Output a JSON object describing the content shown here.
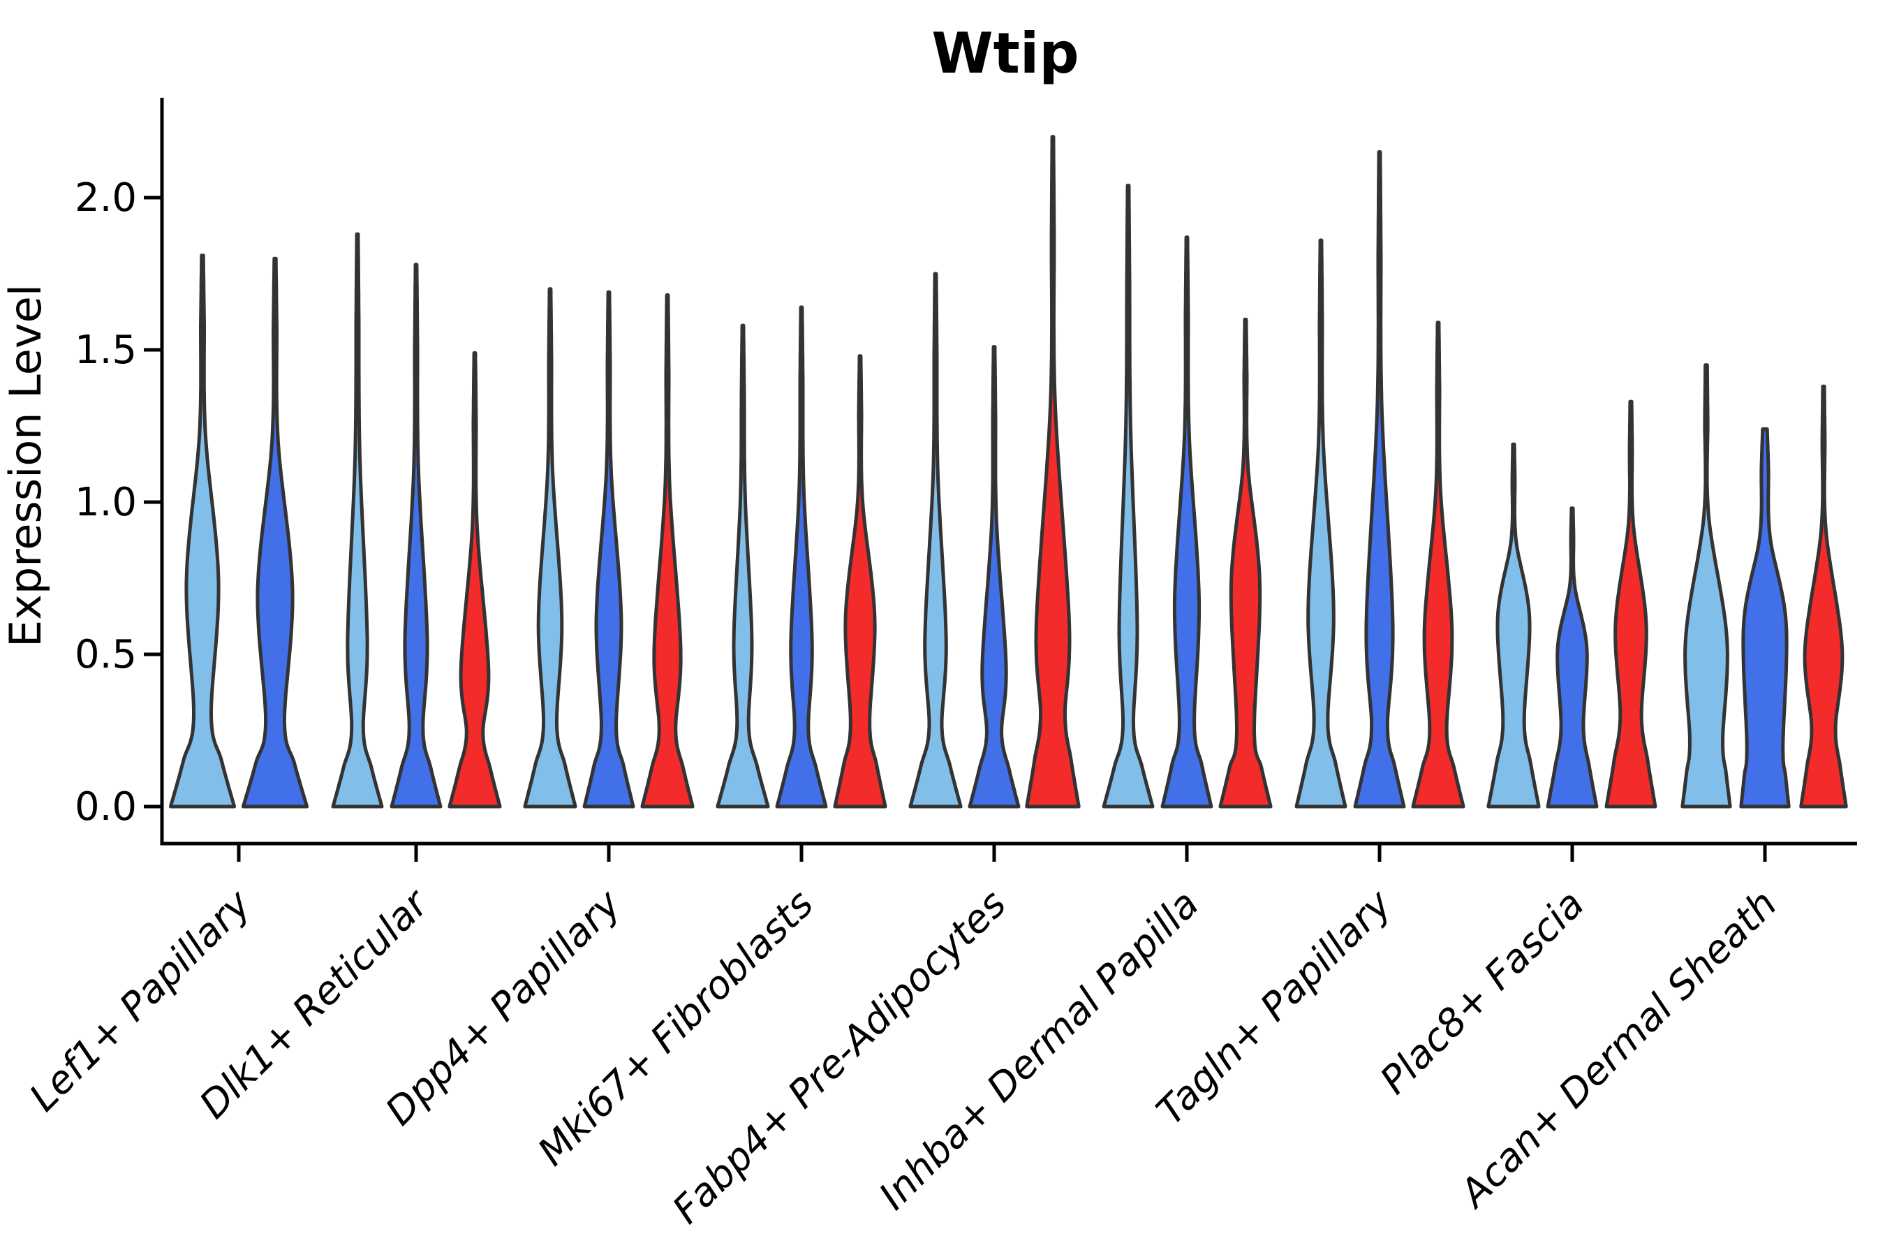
{
  "chart_data": {
    "type": "violin",
    "title": "Wtip",
    "ylabel": "Expression Level",
    "xlabel": "",
    "yticks": [
      "0.0",
      "0.5",
      "1.0",
      "1.5",
      "2.0"
    ],
    "ytick_values": [
      0.0,
      0.5,
      1.0,
      1.5,
      2.0
    ],
    "ylim": [
      -0.12,
      2.33
    ],
    "grid": false,
    "legend_position": "none",
    "x_label_rotation_deg": 45,
    "x_label_style": "italic",
    "colors": {
      "split1": "#81BFEA",
      "split2": "#4270E8",
      "split3": "#F32B2B",
      "outline": "#333333",
      "axis": "#000000",
      "text": "#000000"
    },
    "categories": [
      "Lef1+ Papillary",
      "Dlk1+ Reticular",
      "Dpp4+ Papillary",
      "Mki67+ Fibroblasts",
      "Fabp4+ Pre-Adipocytes",
      "Inhba+ Dermal Papilla",
      "Tagln+ Papillary",
      "Plac8+ Fascia",
      "Acan+ Dermal Sheath"
    ],
    "groups": [
      {
        "category": "Lef1+ Papillary",
        "violins": [
          {
            "split": "split1",
            "max": 1.81,
            "base": 0.95,
            "waist_v": 0.3,
            "waist_w": 0.26,
            "bulge_v": 0.74,
            "bulge_w": 0.48
          },
          {
            "split": "split2",
            "max": 1.8,
            "base": 0.95,
            "waist_v": 0.28,
            "waist_w": 0.28,
            "bulge_v": 0.71,
            "bulge_w": 0.52
          }
        ]
      },
      {
        "category": "Dlk1+ Reticular",
        "violins": [
          {
            "split": "split1",
            "max": 1.88,
            "base": 0.92,
            "waist_v": 0.25,
            "waist_w": 0.22,
            "bulge_v": 0.55,
            "bulge_w": 0.37
          },
          {
            "split": "split2",
            "max": 1.78,
            "base": 0.92,
            "waist_v": 0.25,
            "waist_w": 0.26,
            "bulge_v": 0.55,
            "bulge_w": 0.42
          },
          {
            "split": "split3",
            "max": 1.49,
            "base": 0.95,
            "waist_v": 0.24,
            "waist_w": 0.31,
            "bulge_v": 0.45,
            "bulge_w": 0.52
          }
        ]
      },
      {
        "category": "Dpp4+ Papillary",
        "violins": [
          {
            "split": "split1",
            "max": 1.7,
            "base": 0.95,
            "waist_v": 0.27,
            "waist_w": 0.25,
            "bulge_v": 0.62,
            "bulge_w": 0.44
          },
          {
            "split": "split2",
            "max": 1.69,
            "base": 0.92,
            "waist_v": 0.26,
            "waist_w": 0.28,
            "bulge_v": 0.62,
            "bulge_w": 0.47
          },
          {
            "split": "split3",
            "max": 1.68,
            "base": 0.95,
            "waist_v": 0.25,
            "waist_w": 0.31,
            "bulge_v": 0.52,
            "bulge_w": 0.5
          }
        ]
      },
      {
        "category": "Mki67+ Fibroblasts",
        "violins": [
          {
            "split": "split1",
            "max": 1.58,
            "base": 0.95,
            "waist_v": 0.26,
            "waist_w": 0.22,
            "bulge_v": 0.55,
            "bulge_w": 0.34
          },
          {
            "split": "split2",
            "max": 1.64,
            "base": 0.92,
            "waist_v": 0.25,
            "waist_w": 0.26,
            "bulge_v": 0.54,
            "bulge_w": 0.4
          },
          {
            "split": "split3",
            "max": 1.48,
            "base": 0.95,
            "waist_v": 0.27,
            "waist_w": 0.36,
            "bulge_v": 0.62,
            "bulge_w": 0.55
          }
        ]
      },
      {
        "category": "Fabp4+ Pre-Adipocytes",
        "violins": [
          {
            "split": "split1",
            "max": 1.75,
            "base": 0.95,
            "waist_v": 0.26,
            "waist_w": 0.24,
            "bulge_v": 0.55,
            "bulge_w": 0.4
          },
          {
            "split": "split2",
            "max": 1.51,
            "base": 0.92,
            "waist_v": 0.24,
            "waist_w": 0.28,
            "bulge_v": 0.46,
            "bulge_w": 0.45
          },
          {
            "split": "split3",
            "max": 2.2,
            "base": 0.98,
            "waist_v": 0.3,
            "waist_w": 0.46,
            "bulge_v": 0.6,
            "bulge_w": 0.62
          }
        ]
      },
      {
        "category": "Inhba+ Dermal Papilla",
        "violins": [
          {
            "split": "split1",
            "max": 2.04,
            "base": 0.92,
            "waist_v": 0.26,
            "waist_w": 0.2,
            "bulge_v": 0.6,
            "bulge_w": 0.34
          },
          {
            "split": "split2",
            "max": 1.87,
            "base": 0.92,
            "waist_v": 0.27,
            "waist_w": 0.28,
            "bulge_v": 0.68,
            "bulge_w": 0.46
          },
          {
            "split": "split3",
            "max": 1.6,
            "base": 0.95,
            "waist_v": 0.25,
            "waist_w": 0.33,
            "bulge_v": 0.73,
            "bulge_w": 0.54
          }
        ]
      },
      {
        "category": "Tagln+ Papillary",
        "violins": [
          {
            "split": "split1",
            "max": 1.86,
            "base": 0.92,
            "waist_v": 0.28,
            "waist_w": 0.26,
            "bulge_v": 0.65,
            "bulge_w": 0.48
          },
          {
            "split": "split2",
            "max": 2.15,
            "base": 0.92,
            "waist_v": 0.26,
            "waist_w": 0.3,
            "bulge_v": 0.6,
            "bulge_w": 0.5
          },
          {
            "split": "split3",
            "max": 1.59,
            "base": 0.95,
            "waist_v": 0.25,
            "waist_w": 0.32,
            "bulge_v": 0.58,
            "bulge_w": 0.52
          }
        ]
      },
      {
        "category": "Plac8+ Fascia",
        "violins": [
          {
            "split": "split1",
            "max": 1.19,
            "base": 0.95,
            "waist_v": 0.28,
            "waist_w": 0.4,
            "bulge_v": 0.62,
            "bulge_w": 0.6,
            "tip_w": 0.04
          },
          {
            "split": "split2",
            "max": 0.98,
            "base": 0.92,
            "waist_v": 0.26,
            "waist_w": 0.42,
            "bulge_v": 0.52,
            "bulge_w": 0.55,
            "tip_w": 0.04
          },
          {
            "split": "split3",
            "max": 1.33,
            "base": 0.92,
            "waist_v": 0.3,
            "waist_w": 0.4,
            "bulge_v": 0.6,
            "bulge_w": 0.58,
            "tip_w": 0.04
          }
        ]
      },
      {
        "category": "Acan+ Dermal Sheath",
        "violins": [
          {
            "split": "split1",
            "max": 1.45,
            "base": 0.9,
            "waist_v": 0.22,
            "waist_w": 0.62,
            "bulge_v": 0.55,
            "bulge_w": 0.78,
            "tip_w": 0.05
          },
          {
            "split": "split2",
            "max": 1.24,
            "base": 0.9,
            "waist_v": 0.2,
            "waist_w": 0.68,
            "bulge_v": 0.6,
            "bulge_w": 0.8,
            "tip_w": 0.12
          },
          {
            "split": "split3",
            "max": 1.38,
            "base": 0.85,
            "waist_v": 0.26,
            "waist_w": 0.45,
            "bulge_v": 0.52,
            "bulge_w": 0.7,
            "tip_w": 0.04
          }
        ]
      }
    ]
  }
}
